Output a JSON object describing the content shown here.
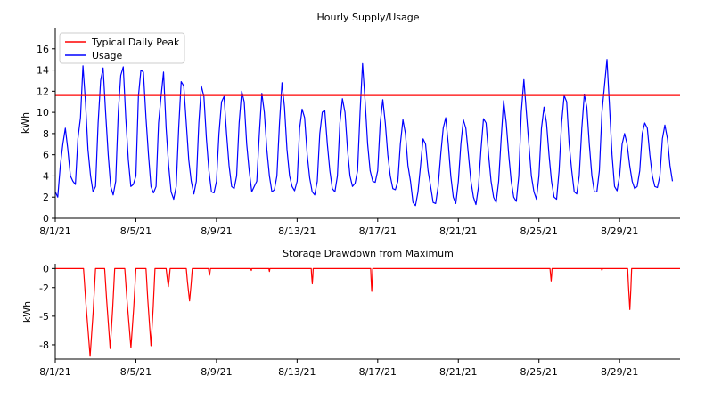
{
  "colors": {
    "usage": "#0000ff",
    "peak": "#ff0000",
    "drawdown": "#ff0000",
    "axis": "#000000"
  },
  "x_ticks": [
    "8/1/21",
    "8/5/21",
    "8/9/21",
    "8/13/21",
    "8/17/21",
    "8/21/21",
    "8/25/21",
    "8/29/21"
  ],
  "chart_data": [
    {
      "type": "line",
      "title": "Hourly Supply/Usage",
      "xlabel": "",
      "ylabel": "kWh",
      "x_start": "8/1/21",
      "x_end": "9/1/21",
      "ylim": [
        0,
        18
      ],
      "yticks": [
        0,
        2,
        4,
        6,
        8,
        10,
        12,
        14,
        16
      ],
      "legend_position": "top-left",
      "grid": false,
      "series": [
        {
          "name": "Typical Daily Peak",
          "type": "hline",
          "value": 11.6
        },
        {
          "name": "Usage",
          "sampling": "every 3 hours",
          "start": "8/1/21 00:00",
          "values": [
            2.5,
            2.0,
            5.0,
            7.0,
            8.5,
            6.5,
            4.0,
            3.5,
            3.2,
            7.5,
            9.5,
            14.4,
            11.0,
            6.5,
            4.0,
            2.5,
            3.0,
            9.0,
            13.0,
            14.2,
            10.0,
            6.0,
            3.0,
            2.2,
            3.5,
            10.0,
            13.5,
            14.3,
            9.5,
            5.5,
            3.0,
            3.2,
            4.0,
            11.5,
            14.0,
            13.8,
            9.5,
            6.0,
            3.0,
            2.4,
            3.0,
            9.0,
            11.5,
            13.8,
            8.5,
            5.0,
            2.5,
            1.8,
            3.0,
            8.5,
            12.9,
            12.5,
            9.0,
            5.5,
            3.5,
            2.3,
            3.5,
            9.0,
            12.5,
            11.5,
            7.5,
            4.5,
            2.5,
            2.4,
            3.5,
            8.0,
            11.0,
            11.5,
            8.0,
            5.0,
            3.0,
            2.8,
            4.0,
            9.0,
            12.0,
            11.0,
            7.0,
            4.5,
            2.5,
            3.0,
            3.5,
            8.0,
            11.8,
            10.0,
            6.5,
            4.0,
            2.5,
            2.7,
            4.0,
            9.0,
            12.8,
            10.5,
            6.5,
            4.0,
            3.0,
            2.6,
            3.5,
            8.5,
            10.3,
            9.5,
            6.0,
            3.8,
            2.5,
            2.2,
            3.5,
            8.0,
            10.0,
            10.2,
            7.0,
            4.5,
            2.8,
            2.5,
            4.0,
            9.0,
            11.3,
            10.0,
            6.5,
            4.0,
            3.0,
            3.3,
            4.5,
            10.0,
            14.6,
            11.0,
            7.0,
            4.5,
            3.5,
            3.4,
            4.5,
            9.0,
            11.2,
            9.0,
            6.0,
            4.0,
            2.8,
            2.7,
            3.5,
            7.0,
            9.3,
            8.0,
            5.0,
            3.5,
            1.5,
            1.2,
            2.5,
            5.0,
            7.5,
            7.0,
            4.5,
            3.0,
            1.5,
            1.4,
            3.0,
            6.0,
            8.5,
            9.5,
            7.0,
            4.0,
            2.0,
            1.4,
            3.5,
            7.0,
            9.3,
            8.5,
            6.0,
            3.5,
            2.0,
            1.3,
            3.0,
            6.5,
            9.4,
            9.0,
            6.0,
            3.5,
            2.0,
            1.5,
            3.5,
            7.5,
            11.1,
            9.0,
            6.0,
            3.5,
            2.0,
            1.6,
            4.0,
            10.0,
            13.1,
            10.0,
            7.0,
            4.0,
            2.5,
            1.8,
            4.0,
            8.5,
            10.5,
            9.0,
            6.0,
            3.5,
            2.0,
            1.8,
            4.5,
            9.0,
            11.6,
            11.0,
            7.0,
            4.5,
            2.5,
            2.3,
            4.0,
            8.5,
            11.7,
            10.5,
            7.0,
            4.0,
            2.5,
            2.5,
            4.5,
            10.0,
            12.5,
            15.0,
            10.5,
            6.0,
            3.0,
            2.6,
            4.0,
            7.0,
            8.0,
            7.0,
            5.0,
            3.5,
            2.8,
            3.0,
            4.5,
            8.0,
            9.0,
            8.5,
            6.0,
            4.0,
            3.0,
            2.9,
            4.0,
            7.5,
            8.8,
            7.5,
            5.0,
            3.5
          ]
        }
      ]
    },
    {
      "type": "line",
      "title": "Storage Drawdown from Maximum",
      "xlabel": "",
      "ylabel": "kWh",
      "x_start": "8/1/21",
      "x_end": "9/1/21",
      "ylim": [
        -9.5,
        0.5
      ],
      "yticks": [
        0,
        -2,
        -5,
        -8
      ],
      "grid": false,
      "series": [
        {
          "name": "",
          "sampling": "events: [day offset, duration in days, min drawdown kWh]",
          "events": [
            [
              1.4,
              0.6,
              -9.2
            ],
            [
              2.45,
              0.5,
              -8.4
            ],
            [
              3.45,
              0.55,
              -8.3
            ],
            [
              4.5,
              0.45,
              -8.1
            ],
            [
              5.5,
              0.2,
              -1.9
            ],
            [
              6.5,
              0.3,
              -3.4
            ],
            [
              7.6,
              0.1,
              -0.7
            ],
            [
              9.7,
              0.05,
              -0.2
            ],
            [
              10.6,
              0.05,
              -0.3
            ],
            [
              12.7,
              0.1,
              -1.6
            ],
            [
              15.65,
              0.1,
              -2.4
            ],
            [
              24.55,
              0.1,
              -1.3
            ],
            [
              27.1,
              0.05,
              -0.2
            ],
            [
              28.4,
              0.2,
              -4.3
            ]
          ]
        }
      ]
    }
  ]
}
